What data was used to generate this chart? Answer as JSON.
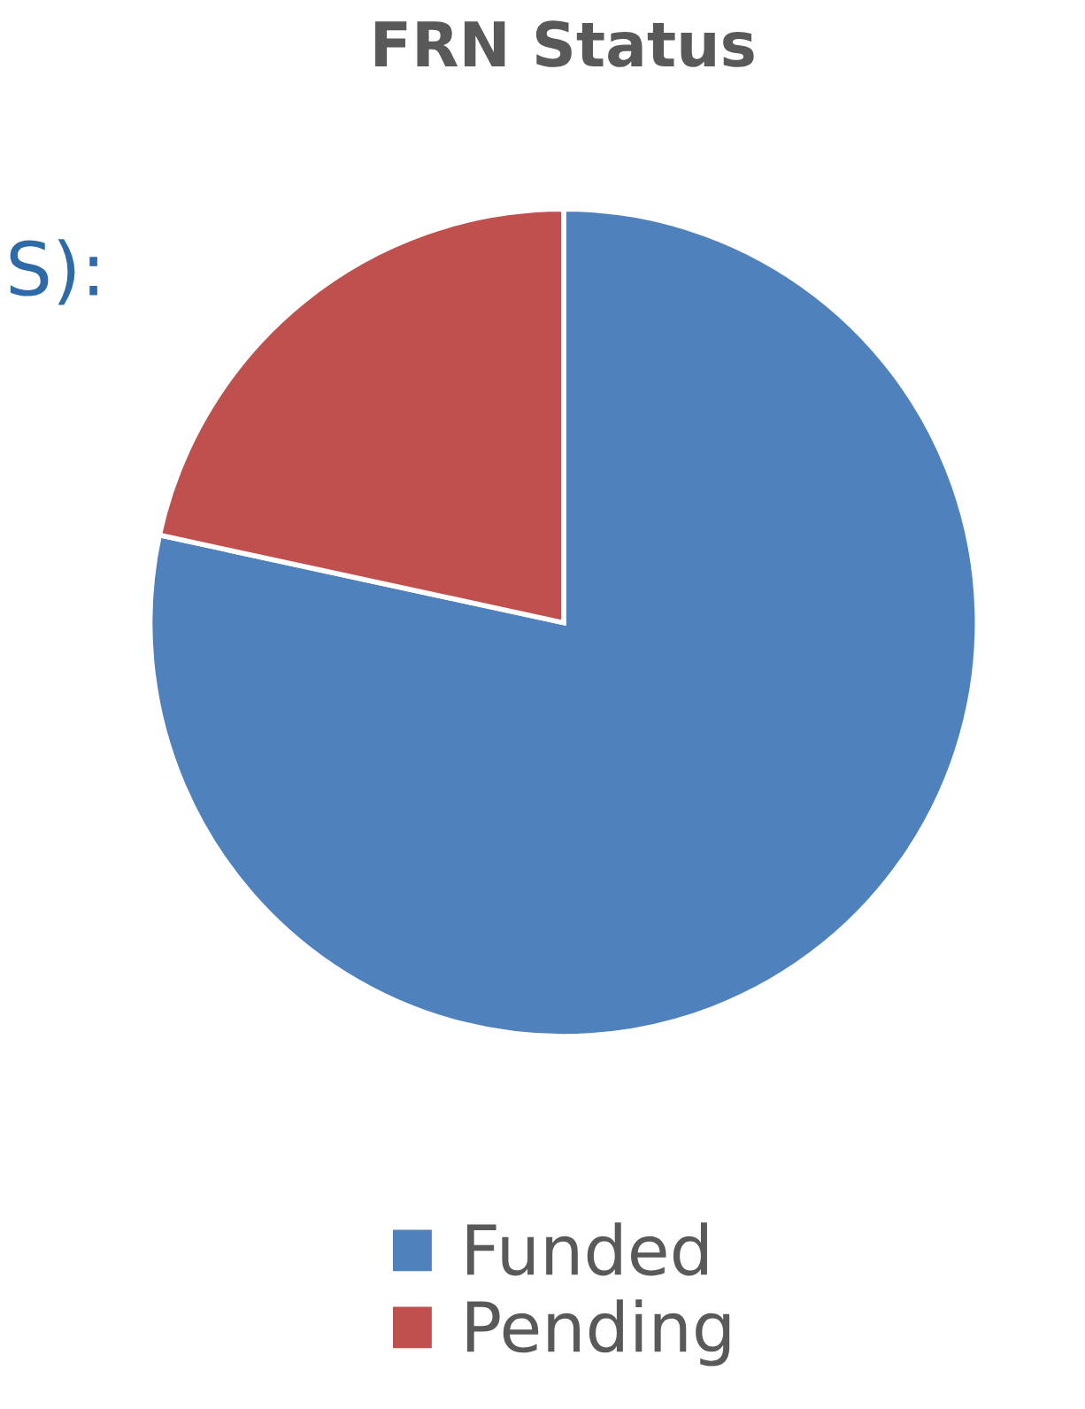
{
  "chart_data": {
    "type": "pie",
    "title": "FRN Status",
    "categories": [
      "Funded",
      "Pending"
    ],
    "values": [
      78.4,
      21.6
    ],
    "colors": [
      "#4f81bd",
      "#c0504d"
    ],
    "legend": "bottom",
    "annotations": [
      "S):"
    ]
  }
}
